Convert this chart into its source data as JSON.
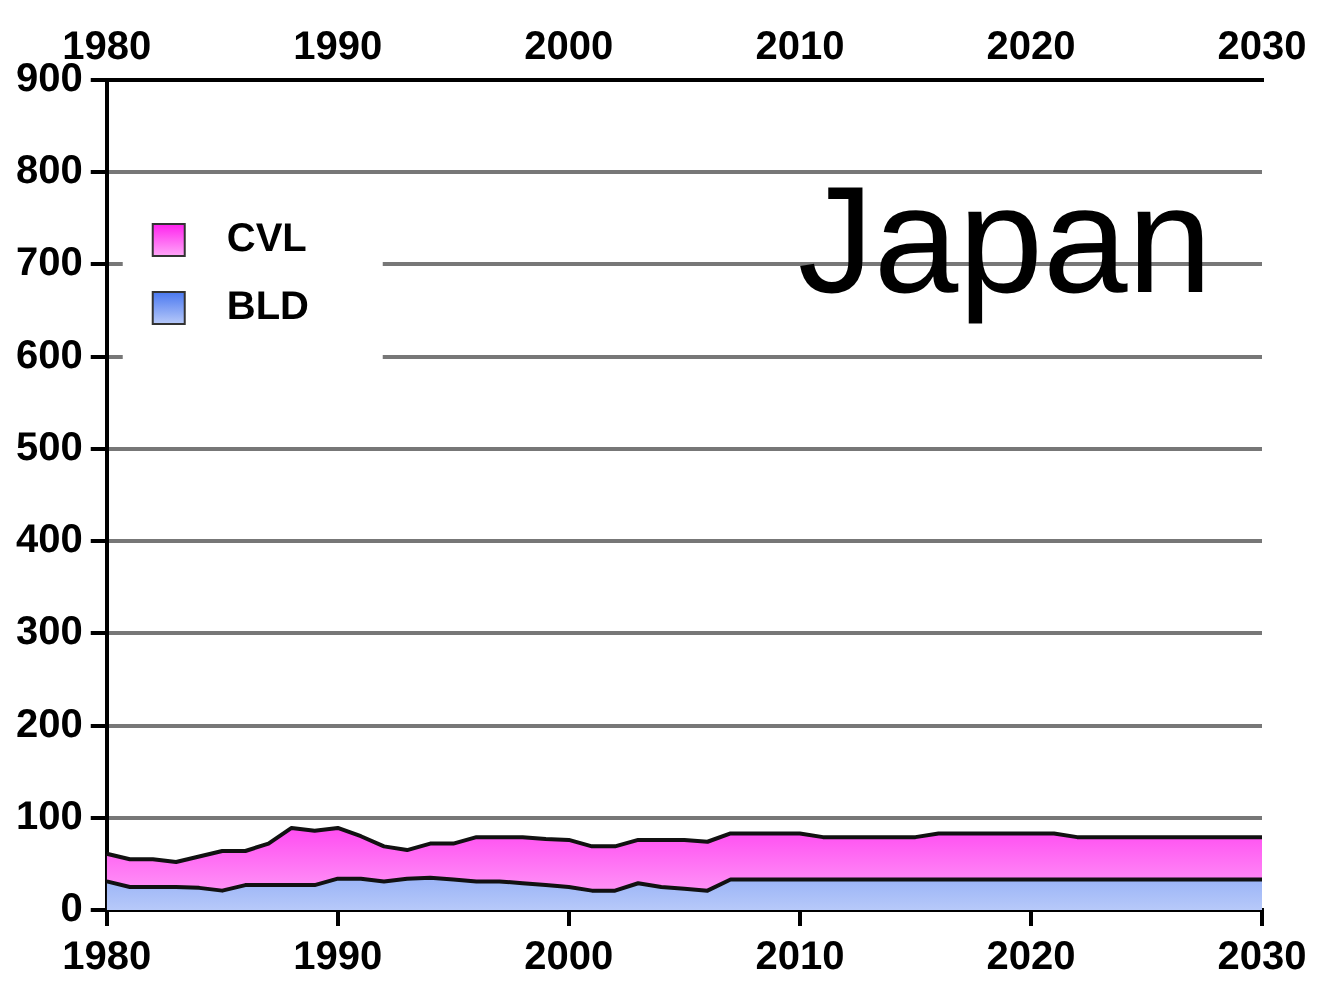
{
  "chart_data": {
    "type": "area",
    "stacked": true,
    "annotations": [
      "Japan"
    ],
    "x": [
      1980,
      1981,
      1982,
      1983,
      1984,
      1985,
      1986,
      1987,
      1988,
      1989,
      1990,
      1991,
      1992,
      1993,
      1994,
      1995,
      1996,
      1997,
      1998,
      1999,
      2000,
      2001,
      2002,
      2003,
      2004,
      2005,
      2006,
      2007,
      2008,
      2009,
      2010,
      2011,
      2015,
      2016,
      2021,
      2022,
      2030
    ],
    "series": [
      {
        "name": "BLD",
        "color": "#4a78f0",
        "values": [
          31,
          25,
          25,
          25,
          24,
          21,
          27,
          27,
          27,
          27,
          34,
          34,
          31,
          34,
          35,
          33,
          31,
          31,
          29,
          27,
          25,
          21,
          21,
          29,
          25,
          23,
          21,
          33,
          33,
          33,
          33,
          33,
          33,
          33,
          33,
          33,
          33
        ]
      },
      {
        "name": "CVL",
        "color": "#ff22ee",
        "values": [
          30,
          30,
          30,
          27,
          34,
          43,
          37,
          45,
          62,
          59,
          55,
          46,
          38,
          31,
          37,
          39,
          48,
          48,
          50,
          50,
          51,
          48,
          48,
          47,
          51,
          53,
          53,
          50,
          50,
          50,
          50,
          46,
          46,
          50,
          50,
          46,
          46
        ]
      }
    ],
    "xlim": [
      1980,
      2030
    ],
    "xticks": [
      1980,
      1990,
      2000,
      2010,
      2020,
      2030
    ],
    "x2lim": [
      1980,
      2030
    ],
    "x2ticks": [
      1980,
      1990,
      2000,
      2010,
      2020,
      2030
    ],
    "ylim": [
      0,
      900
    ],
    "yticks": [
      0,
      100,
      200,
      300,
      400,
      500,
      600,
      700,
      800,
      900
    ],
    "grid": "y",
    "legend": "top left"
  }
}
